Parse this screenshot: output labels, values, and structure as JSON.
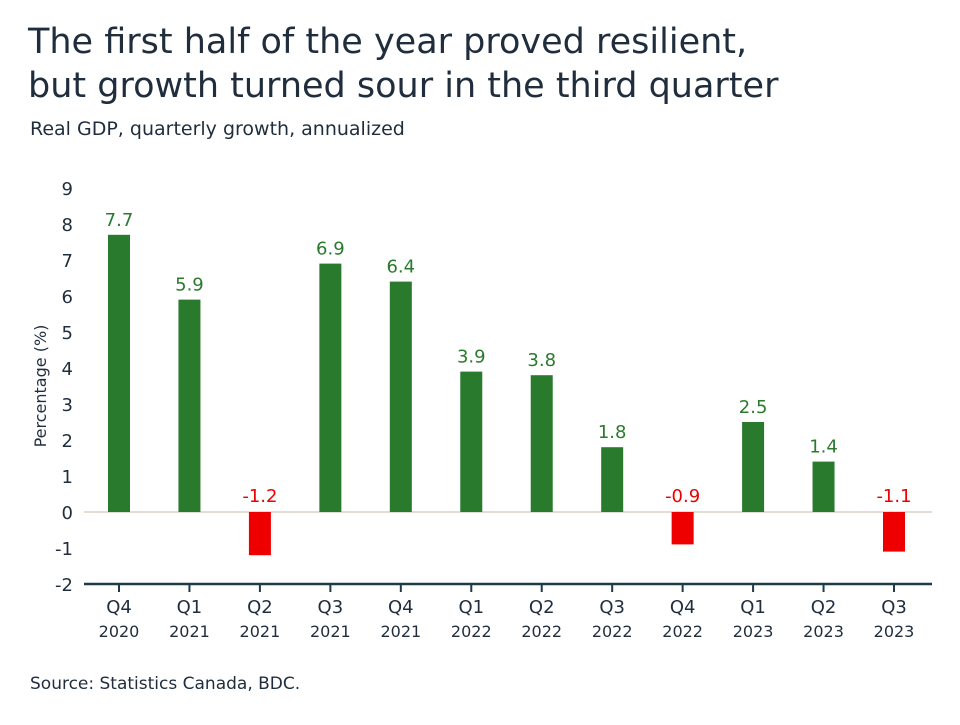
{
  "title_line1": "The first half of the year proved resilient,",
  "title_line2": "but growth turned sour in the third quarter",
  "subtitle": "Real GDP, quarterly growth, annualized",
  "source": "Source: Statistics Canada, BDC.",
  "colors": {
    "positive": "#2a7a2e",
    "negative": "#ee0000",
    "axis": "#1f3a4a",
    "zero_line": "#e4ddd4"
  },
  "chart_data": {
    "type": "bar",
    "title": "The first half of the year proved resilient, but growth turned sour in the third quarter",
    "subtitle": "Real GDP, quarterly growth, annualized",
    "ylabel": "Percentage (%)",
    "xlabel": "",
    "ylim": [
      -2,
      9
    ],
    "yticks": [
      "9",
      "8",
      "7",
      "6",
      "5",
      "4",
      "3",
      "2",
      "1",
      "0",
      "-1",
      "-2"
    ],
    "grid": false,
    "categories": [
      {
        "quarter": "Q4",
        "year": "2020"
      },
      {
        "quarter": "Q1",
        "year": "2021"
      },
      {
        "quarter": "Q2",
        "year": "2021"
      },
      {
        "quarter": "Q3",
        "year": "2021"
      },
      {
        "quarter": "Q4",
        "year": "2021"
      },
      {
        "quarter": "Q1",
        "year": "2022"
      },
      {
        "quarter": "Q2",
        "year": "2022"
      },
      {
        "quarter": "Q3",
        "year": "2022"
      },
      {
        "quarter": "Q4",
        "year": "2022"
      },
      {
        "quarter": "Q1",
        "year": "2023"
      },
      {
        "quarter": "Q2",
        "year": "2023"
      },
      {
        "quarter": "Q3",
        "year": "2023"
      }
    ],
    "values": [
      7.7,
      5.9,
      -1.2,
      6.9,
      6.4,
      3.9,
      3.8,
      1.8,
      -0.9,
      2.5,
      1.4,
      -1.1
    ],
    "labels": [
      "7.7",
      "5.9",
      "-1.2",
      "6.9",
      "6.4",
      "3.9",
      "3.8",
      "1.8",
      "-0.9",
      "2.5",
      "1.4",
      "-1.1"
    ]
  }
}
